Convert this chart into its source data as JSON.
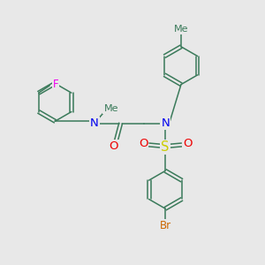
{
  "bg_color": "#e8e8e8",
  "bond_color": "#3a7a5a",
  "colors": {
    "N": "#0000ee",
    "O": "#ee0000",
    "S": "#cccc00",
    "F": "#ee00ee",
    "Br": "#cc6600",
    "C": "#3a7a5a"
  },
  "lw": 1.1,
  "ring_r": 0.72,
  "dbl_off": 0.065
}
